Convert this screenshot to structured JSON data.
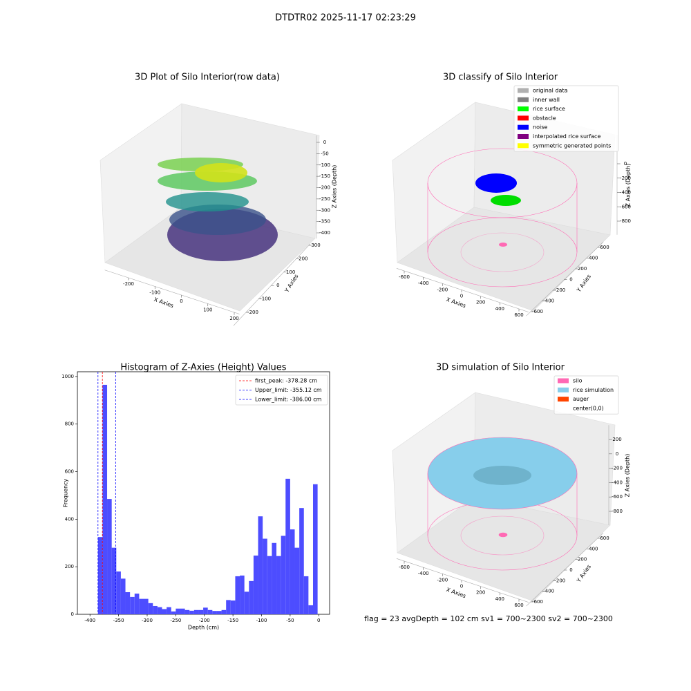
{
  "title": "DTDTR02 2025-11-17 02:23:29",
  "footer": "flag = 23  avgDepth = 102 cm  sv1 = 700~2300  sv2 = 700~2300",
  "chart_data": [
    {
      "type": "scatter3d",
      "title": "3D Plot of Silo Interior(row data)",
      "xlabel": "X Axies",
      "ylabel": "Y Axies",
      "zlabel": "Z Axies (Depth)",
      "xlim": [
        -290,
        220
      ],
      "ylim": [
        -300,
        310
      ],
      "zlim": [
        -425,
        30
      ],
      "xticks": [
        -200,
        -100,
        0,
        100,
        200
      ],
      "yticks": [
        -200,
        -100,
        0,
        100,
        200,
        300
      ],
      "zticks": [
        -400,
        -350,
        -300,
        -250,
        -200,
        -150,
        -100,
        -50,
        0
      ]
    },
    {
      "type": "scatter3d",
      "title": "3D classify of Silo Interior",
      "xlabel": "X Axies",
      "ylabel": "Y Axies",
      "zlabel": "Z Axies (Depth)",
      "xlim": [
        -680,
        700
      ],
      "ylim": [
        -680,
        700
      ],
      "zlim": [
        -990,
        400
      ],
      "xticks": [
        -600,
        -400,
        -200,
        0,
        200,
        400,
        600
      ],
      "yticks": [
        -600,
        -400,
        -200,
        0,
        200,
        400,
        600
      ],
      "zticks": [
        -800,
        -600,
        -400,
        -200,
        0
      ],
      "legend": [
        {
          "name": "original data",
          "color": "#b0b0b0"
        },
        {
          "name": "inner wall",
          "color": "#808080"
        },
        {
          "name": "rice surface",
          "color": "#00ff00"
        },
        {
          "name": "obstacle",
          "color": "#ff0000"
        },
        {
          "name": "noise",
          "color": "#0000ff"
        },
        {
          "name": "interpolated rice surface",
          "color": "#800080"
        },
        {
          "name": "symmetric generated points",
          "color": "#ffff00"
        }
      ]
    },
    {
      "type": "histogram",
      "title": "Histogram of Z-Axies (Height) Values",
      "xlabel": "Depth (cm)",
      "ylabel": "Frequency",
      "color": "#4d4dff",
      "bins": [
        -386,
        -378,
        -370,
        -362,
        -354,
        -346,
        -338,
        -330,
        -322,
        -314,
        -306,
        -298,
        -290,
        -282,
        -274,
        -266,
        -258,
        -250,
        -242,
        -234,
        -226,
        -218,
        -210,
        -202,
        -194,
        -186,
        -178,
        -170,
        -162,
        -154,
        -146,
        -138,
        -130,
        -122,
        -114,
        -106,
        -98,
        -90,
        -82,
        -74,
        -66,
        -58,
        -50,
        -42,
        -34,
        -26,
        -18,
        -10,
        -2
      ],
      "counts": [
        325,
        965,
        485,
        280,
        180,
        150,
        93,
        73,
        87,
        65,
        65,
        47,
        35,
        30,
        22,
        30,
        12,
        24,
        24,
        18,
        15,
        18,
        18,
        28,
        18,
        14,
        14,
        18,
        60,
        58,
        160,
        163,
        95,
        140,
        247,
        412,
        318,
        245,
        300,
        245,
        330,
        570,
        357,
        280,
        447,
        160,
        38,
        547
      ],
      "xlim": [
        -422,
        19
      ],
      "ylim": [
        0,
        1020
      ],
      "xticks": [
        -400,
        -350,
        -300,
        -250,
        -200,
        -150,
        -100,
        -50,
        0
      ],
      "yticks": [
        0,
        200,
        400,
        600,
        800,
        1000
      ],
      "vlines": [
        {
          "label": "first_peak: -378.28 cm",
          "value": -378.28,
          "color": "#ff0000"
        },
        {
          "label": "Upper_limit: -355.12 cm",
          "value": -355.12,
          "color": "#0000ff"
        },
        {
          "label": "Lower_limit: -386.00 cm",
          "value": -386.0,
          "color": "#0000ff"
        }
      ]
    },
    {
      "type": "surface3d",
      "title": "3D simulation of Silo Interior",
      "xlabel": "X Axies",
      "ylabel": "Y Axies",
      "zlabel": "Z Axies (Depth)",
      "xlim": [
        -680,
        700
      ],
      "ylim": [
        -680,
        700
      ],
      "zlim": [
        -990,
        400
      ],
      "xticks": [
        -600,
        -400,
        -200,
        0,
        200,
        400,
        600
      ],
      "yticks": [
        -600,
        -400,
        -200,
        0,
        200,
        400,
        600
      ],
      "zticks": [
        -800,
        -600,
        -400,
        -200,
        0,
        200
      ],
      "legend": [
        {
          "name": "silo",
          "color": "#ff69b4"
        },
        {
          "name": "rice simulation",
          "color": "#87ceeb"
        },
        {
          "name": "auger",
          "color": "#ff4500"
        },
        {
          "name": "center(0,0)",
          "color": "#ffffff"
        }
      ]
    }
  ]
}
